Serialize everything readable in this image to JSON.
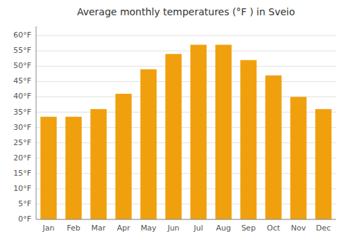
{
  "chart_data": {
    "type": "bar",
    "title": "Average monthly temperatures (°F ) in Sveio",
    "categories": [
      "Jan",
      "Feb",
      "Mar",
      "Apr",
      "May",
      "Jun",
      "Jul",
      "Aug",
      "Sep",
      "Oct",
      "Nov",
      "Dec"
    ],
    "values": [
      33.5,
      33.5,
      36.0,
      41.0,
      49.0,
      54.0,
      57.0,
      57.0,
      52.0,
      47.0,
      40.0,
      36.0
    ],
    "color": "#F0A00D",
    "ylim": [
      0,
      63
    ],
    "yticks": [
      {
        "value": 0,
        "label": "0°F"
      },
      {
        "value": 5,
        "label": "5°F"
      },
      {
        "value": 10,
        "label": "10°F"
      },
      {
        "value": 15,
        "label": "15°F"
      },
      {
        "value": 20,
        "label": "20°F"
      },
      {
        "value": 25,
        "label": "25°F"
      },
      {
        "value": 30,
        "label": "30°F"
      },
      {
        "value": 35,
        "label": "35°F"
      },
      {
        "value": 40,
        "label": "40°F"
      },
      {
        "value": 45,
        "label": "45°F"
      },
      {
        "value": 50,
        "label": "50°F"
      },
      {
        "value": 55,
        "label": "55°F"
      },
      {
        "value": 60,
        "label": "60°F"
      }
    ],
    "grid": true
  }
}
